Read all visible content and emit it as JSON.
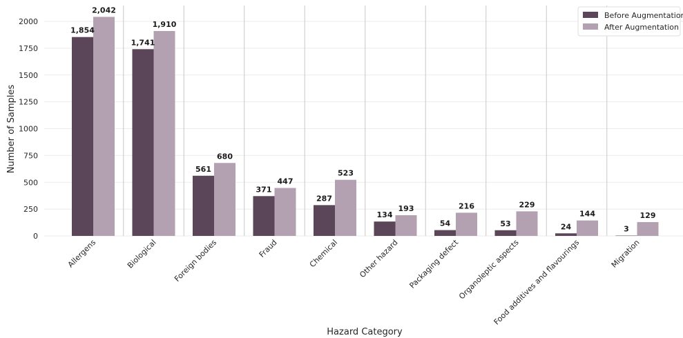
{
  "chart_data": {
    "type": "bar",
    "title": "",
    "xlabel": "Hazard Category",
    "ylabel": "Number of Samples",
    "ylim": [
      0,
      2100
    ],
    "yticks": [
      0,
      250,
      500,
      750,
      1000,
      1250,
      1500,
      1750,
      2000
    ],
    "grid": true,
    "legend_position": "top-right",
    "categories": [
      "Allergens",
      "Biological",
      "Foreign bodies",
      "Fraud",
      "Chemical",
      "Other hazard",
      "Packaging defect",
      "Organoleptic aspects",
      "Food additives and flavourings",
      "Migration"
    ],
    "series": [
      {
        "name": "Before Augmentation",
        "color": "#5a4658",
        "values": [
          1854,
          1741,
          561,
          371,
          287,
          134,
          54,
          53,
          24,
          3
        ],
        "labels": [
          "1,854",
          "1,741",
          "561",
          "371",
          "287",
          "134",
          "54",
          "53",
          "24",
          "3"
        ]
      },
      {
        "name": "After Augmentation",
        "color": "#b3a0b0",
        "values": [
          2042,
          1910,
          680,
          447,
          523,
          193,
          216,
          229,
          144,
          129
        ],
        "labels": [
          "2,042",
          "1,910",
          "680",
          "447",
          "523",
          "193",
          "216",
          "229",
          "144",
          "129"
        ]
      }
    ]
  }
}
